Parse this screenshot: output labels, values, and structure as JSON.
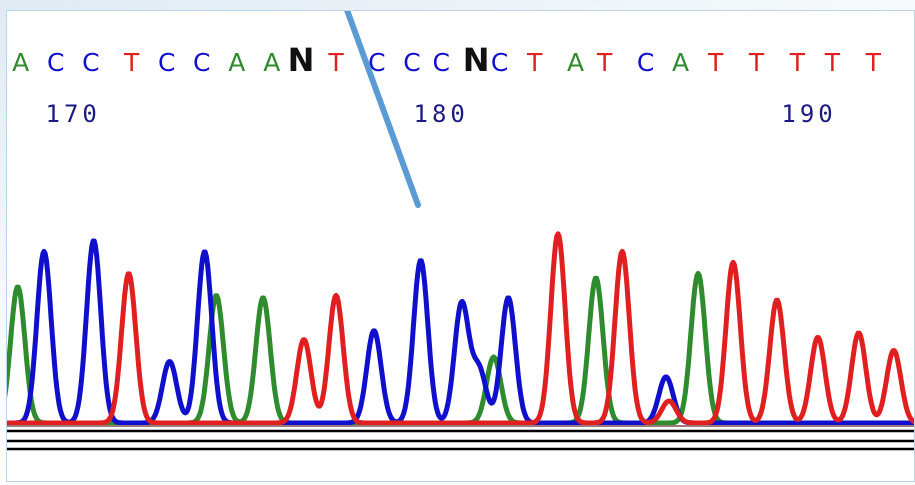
{
  "chart_data": {
    "type": "line",
    "title": "",
    "xlabel": "",
    "ylabel": "",
    "grid": false,
    "legend": "none",
    "base_calls": [
      {
        "base": "A",
        "x": 0.2
      },
      {
        "base": "C",
        "x": 0.8
      },
      {
        "base": "C",
        "x": 1.4
      },
      {
        "base": "T",
        "x": 2.1
      },
      {
        "base": "C",
        "x": 2.7
      },
      {
        "base": "C",
        "x": 3.3
      },
      {
        "base": "A",
        "x": 3.9
      },
      {
        "base": "A",
        "x": 4.5
      },
      {
        "base": "N",
        "x": 5.0
      },
      {
        "base": "T",
        "x": 5.6
      },
      {
        "base": "C",
        "x": 6.3
      },
      {
        "base": "C",
        "x": 6.9
      },
      {
        "base": "C",
        "x": 7.4
      },
      {
        "base": "N",
        "x": 8.0
      },
      {
        "base": "C",
        "x": 8.4
      },
      {
        "base": "T",
        "x": 9.0
      },
      {
        "base": "A",
        "x": 9.7
      },
      {
        "base": "T",
        "x": 10.2
      },
      {
        "base": "C",
        "x": 10.9
      },
      {
        "base": "A",
        "x": 11.5
      },
      {
        "base": "T",
        "x": 12.1
      },
      {
        "base": "T",
        "x": 12.8
      },
      {
        "base": "T",
        "x": 13.5
      },
      {
        "base": "T",
        "x": 14.1
      },
      {
        "base": "T",
        "x": 14.8
      }
    ],
    "position_ticks": [
      {
        "label": "170",
        "x": 1.1
      },
      {
        "label": "180",
        "x": 7.4
      },
      {
        "label": "190",
        "x": 13.7
      }
    ],
    "base_colors": {
      "A": "#2e8b2e",
      "C": "#1010cc",
      "G": "#111111",
      "T": "#e02020",
      "N": "#111111"
    },
    "pointer_color": "#5b9bd5",
    "series": [
      {
        "base": "A",
        "color": "#2e8b2e",
        "peaks": [
          [
            0.15,
            0.62
          ],
          [
            3.55,
            0.58
          ],
          [
            4.35,
            0.57
          ],
          [
            8.3,
            0.3
          ],
          [
            10.05,
            0.66
          ],
          [
            11.8,
            0.68
          ]
        ]
      },
      {
        "base": "C",
        "color": "#1010cc",
        "peaks": [
          [
            0.6,
            0.78
          ],
          [
            1.45,
            0.83
          ],
          [
            2.75,
            0.28
          ],
          [
            3.35,
            0.78
          ],
          [
            6.25,
            0.42
          ],
          [
            7.05,
            0.74
          ],
          [
            7.75,
            0.54
          ],
          [
            8.05,
            0.24
          ],
          [
            8.55,
            0.57
          ],
          [
            11.25,
            0.21
          ]
        ]
      },
      {
        "base": "T",
        "color": "#e02020",
        "peaks": [
          [
            2.05,
            0.68
          ],
          [
            5.05,
            0.38
          ],
          [
            5.6,
            0.58
          ],
          [
            9.4,
            0.86
          ],
          [
            10.5,
            0.78
          ],
          [
            11.3,
            0.1
          ],
          [
            12.4,
            0.73
          ],
          [
            13.15,
            0.56
          ],
          [
            13.85,
            0.39
          ],
          [
            14.55,
            0.41
          ],
          [
            15.15,
            0.33
          ]
        ]
      },
      {
        "base": "G",
        "color": "#111111",
        "peaks": []
      }
    ]
  }
}
